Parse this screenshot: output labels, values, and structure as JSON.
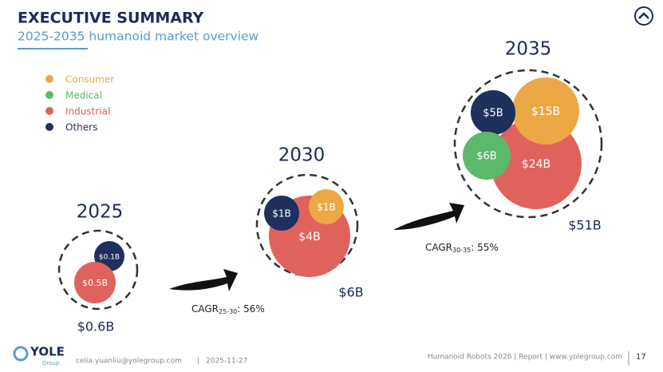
{
  "header": {
    "title": "EXECUTIVE SUMMARY",
    "subtitle": "2025-2035 humanoid market overview"
  },
  "legend": [
    {
      "name": "Consumer",
      "color": "#eca845"
    },
    {
      "name": "Medical",
      "color": "#5cb86a"
    },
    {
      "name": "Industrial",
      "color": "#e0625c"
    },
    {
      "name": "Others",
      "color": "#1f2f5e"
    }
  ],
  "years": [
    {
      "year": "2025",
      "total": "$0.6B",
      "bubbles": [
        {
          "label": "$0.1B",
          "color": "#1f2f5e"
        },
        {
          "label": "$0.5B",
          "color": "#e0625c"
        }
      ]
    },
    {
      "year": "2030",
      "total": "$6B",
      "bubbles": [
        {
          "label": "$4B",
          "color": "#e0625c"
        },
        {
          "label": "$1B",
          "color": "#1f2f5e"
        },
        {
          "label": "$1B",
          "color": "#eca845"
        }
      ]
    },
    {
      "year": "2035",
      "total": "$51B",
      "bubbles": [
        {
          "label": "$24B",
          "color": "#e0625c"
        },
        {
          "label": "$15B",
          "color": "#eca845"
        },
        {
          "label": "$5B",
          "color": "#1f2f5e"
        },
        {
          "label": "$6B",
          "color": "#5cb86a"
        }
      ]
    }
  ],
  "growth": [
    {
      "main": "CAGR",
      "sub": "25-30",
      "rest": ": 56%"
    },
    {
      "main": "CAGR",
      "sub": "30-35",
      "rest": ": 55%"
    }
  ],
  "footer": {
    "logo": "YOLE",
    "logo_sub": "Group",
    "email": "celia.yuanliu@yolegroup.com",
    "date": "2025-11-27",
    "source": "Humanoid Robots 2026 | Report | www.yolegroup.com",
    "page": "17"
  }
}
